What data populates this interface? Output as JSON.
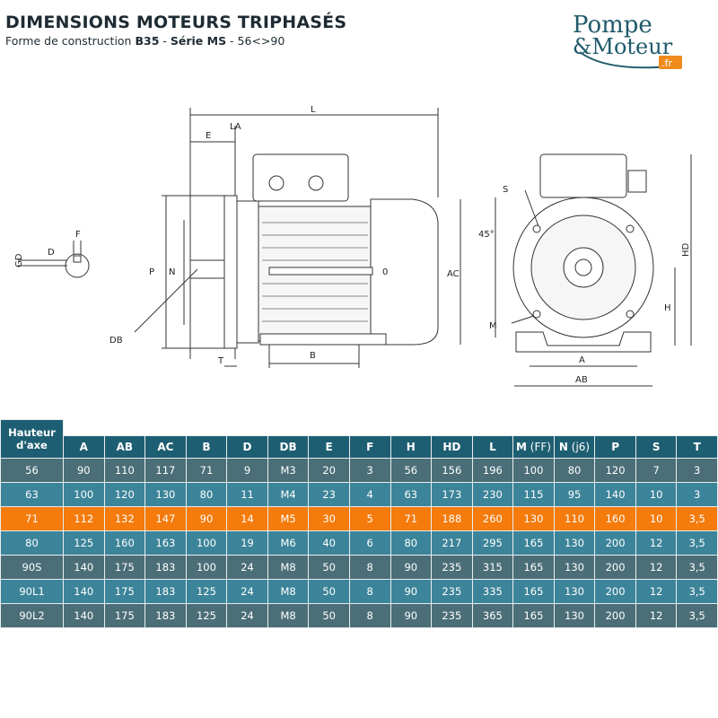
{
  "header": {
    "title": "DIMENSIONS MOTEURS TRIPHASÉS",
    "subtitle_prefix": "Forme de construction ",
    "subtitle_bold1": "B35",
    "subtitle_mid": " - ",
    "subtitle_bold2": "Série MS",
    "subtitle_suffix": " - 56<>90"
  },
  "logo": {
    "text": "Pompe & Moteur .fr",
    "colors": {
      "teal": "#1f5a6b",
      "orange": "#f08a1c"
    }
  },
  "drawing": {
    "labels": {
      "L": "L",
      "E": "E",
      "LA": "LA",
      "P": "P",
      "N": "N",
      "AC": "AC",
      "D": "D",
      "F": "F",
      "GD": "GD",
      "DB": "DB",
      "B": "B",
      "T": "T",
      "O": "0",
      "S": "S",
      "angle": "45°",
      "HD": "HD",
      "H": "H",
      "M": "M",
      "A": "A",
      "AB": "AB"
    }
  },
  "table": {
    "header_first": "Hauteur d'axe",
    "columns": [
      {
        "main": "A"
      },
      {
        "main": "AB"
      },
      {
        "main": "AC"
      },
      {
        "main": "B"
      },
      {
        "main": "D"
      },
      {
        "main": "DB"
      },
      {
        "main": "E"
      },
      {
        "main": "F"
      },
      {
        "main": "H"
      },
      {
        "main": "HD"
      },
      {
        "main": "L"
      },
      {
        "main": "M",
        "sub": " (FF)"
      },
      {
        "main": "N",
        "sub": " (j6)"
      },
      {
        "main": "P"
      },
      {
        "main": "S"
      },
      {
        "main": "T"
      }
    ],
    "rows": [
      [
        "56",
        "90",
        "110",
        "117",
        "71",
        "9",
        "M3",
        "20",
        "3",
        "56",
        "156",
        "196",
        "100",
        "80",
        "120",
        "7",
        "3"
      ],
      [
        "63",
        "100",
        "120",
        "130",
        "80",
        "11",
        "M4",
        "23",
        "4",
        "63",
        "173",
        "230",
        "115",
        "95",
        "140",
        "10",
        "3"
      ],
      [
        "71",
        "112",
        "132",
        "147",
        "90",
        "14",
        "M5",
        "30",
        "5",
        "71",
        "188",
        "260",
        "130",
        "110",
        "160",
        "10",
        "3,5"
      ],
      [
        "80",
        "125",
        "160",
        "163",
        "100",
        "19",
        "M6",
        "40",
        "6",
        "80",
        "217",
        "295",
        "165",
        "130",
        "200",
        "12",
        "3,5"
      ],
      [
        "90S",
        "140",
        "175",
        "183",
        "100",
        "24",
        "M8",
        "50",
        "8",
        "90",
        "235",
        "315",
        "165",
        "130",
        "200",
        "12",
        "3,5"
      ],
      [
        "90L1",
        "140",
        "175",
        "183",
        "125",
        "24",
        "M8",
        "50",
        "8",
        "90",
        "235",
        "335",
        "165",
        "130",
        "200",
        "12",
        "3,5"
      ],
      [
        "90L2",
        "140",
        "175",
        "183",
        "125",
        "24",
        "M8",
        "50",
        "8",
        "90",
        "235",
        "365",
        "165",
        "130",
        "200",
        "12",
        "3,5"
      ]
    ],
    "highlighted_row": "71",
    "colors": {
      "header": "#1e5e72",
      "row_dark": "#4b6e78",
      "row_light": "#3c8499",
      "highlight": "#f47b0c"
    }
  }
}
